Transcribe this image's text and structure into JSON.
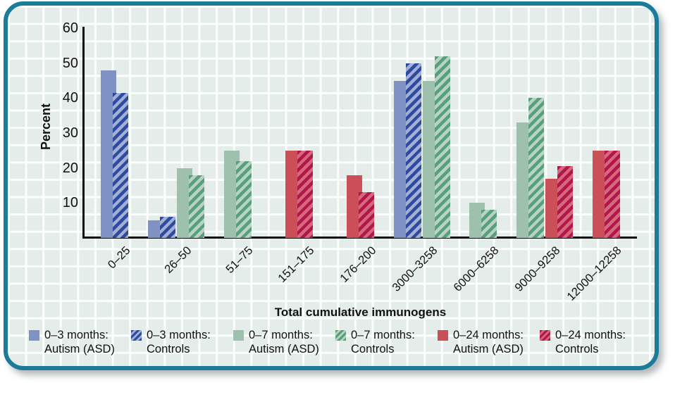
{
  "figure": {
    "border_color": "#1c7b98",
    "background_color": "#e4edea",
    "grid_line_color": "#ffffff"
  },
  "chart_data": {
    "type": "bar",
    "title": "",
    "xlabel": "Total cumulative immunogens",
    "ylabel": "Percent",
    "ylim": [
      0,
      60
    ],
    "yticks": [
      10,
      20,
      30,
      40,
      50,
      60
    ],
    "grid": true,
    "legend_position": "bottom",
    "categories": [
      "0–25",
      "26–50",
      "51–75",
      "151–175",
      "176–200",
      "3000–3258",
      "6000–6258",
      "9000–9258",
      "12000–12258"
    ],
    "series": [
      {
        "name": "0–3 months: Autism (ASD)",
        "legend_line1": "0–3 months:",
        "legend_line2": "Autism (ASD)",
        "pattern": "solid",
        "fill": "#8091c3",
        "values": [
          48,
          5,
          null,
          null,
          null,
          45,
          null,
          null,
          null
        ]
      },
      {
        "name": "0–3 months: Controls",
        "legend_line1": "0–3 months:",
        "legend_line2": "Controls",
        "pattern": "hatched",
        "fill": "#a3b0d6",
        "stripe": "#2f4b9f",
        "values": [
          41.5,
          6,
          null,
          null,
          null,
          50,
          null,
          null,
          null
        ]
      },
      {
        "name": "0–7 months: Autism (ASD)",
        "legend_line1": "0–7 months:",
        "legend_line2": "Autism (ASD)",
        "pattern": "solid",
        "fill": "#9dc1ac",
        "values": [
          null,
          20,
          25,
          null,
          null,
          45,
          10,
          33,
          null
        ]
      },
      {
        "name": "0–7 months: Controls",
        "legend_line1": "0–7 months:",
        "legend_line2": "Controls",
        "pattern": "hatched",
        "fill": "#b7d3c2",
        "stripe": "#57a07b",
        "values": [
          null,
          18,
          22,
          null,
          null,
          52,
          8,
          40,
          null
        ]
      },
      {
        "name": "0–24 months: Autism (ASD)",
        "legend_line1": "0–24 months:",
        "legend_line2": "Autism (ASD)",
        "pattern": "solid",
        "fill": "#cb4f57",
        "values": [
          null,
          null,
          null,
          25,
          18,
          null,
          null,
          17,
          25
        ]
      },
      {
        "name": "0–24 months: Controls",
        "legend_line1": "0–24 months:",
        "legend_line2": "Controls",
        "pattern": "hatched",
        "fill": "#d5697b",
        "stripe": "#b2174b",
        "values": [
          null,
          null,
          null,
          25,
          13,
          null,
          null,
          20.5,
          25
        ]
      }
    ]
  }
}
